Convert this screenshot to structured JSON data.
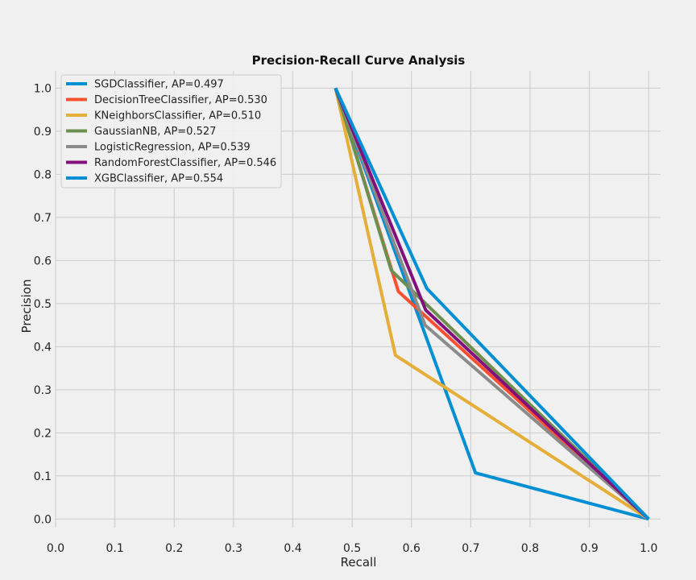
{
  "chart_data": {
    "type": "line",
    "title": "Precision-Recall Curve Analysis",
    "xlabel": "Recall",
    "ylabel": "Precision",
    "xlim": [
      0.0,
      1.02
    ],
    "ylim": [
      -0.02,
      1.04
    ],
    "xticks": [
      0.0,
      0.1,
      0.2,
      0.3,
      0.4,
      0.5,
      0.6,
      0.7,
      0.8,
      0.9,
      1.0
    ],
    "yticks": [
      0.0,
      0.1,
      0.2,
      0.3,
      0.4,
      0.5,
      0.6,
      0.7,
      0.8,
      0.9,
      1.0
    ],
    "grid": true,
    "legend_position": "upper-left",
    "series": [
      {
        "name": "SGDClassifier, AP=0.497",
        "color": "#008fd5",
        "x": [
          0.472,
          0.708,
          1.0
        ],
        "y": [
          1.0,
          0.107,
          0.0
        ]
      },
      {
        "name": "DecisionTreeClassifier, AP=0.530",
        "color": "#fc4f30",
        "x": [
          0.472,
          0.578,
          1.0
        ],
        "y": [
          1.0,
          0.528,
          0.0
        ]
      },
      {
        "name": "KNeighborsClassifier, AP=0.510",
        "color": "#e5ae38",
        "x": [
          0.472,
          0.573,
          1.0
        ],
        "y": [
          1.0,
          0.38,
          0.0
        ]
      },
      {
        "name": "GaussianNB, AP=0.527",
        "color": "#6d904f",
        "x": [
          0.472,
          0.566,
          1.0
        ],
        "y": [
          1.0,
          0.577,
          0.0
        ]
      },
      {
        "name": "LogisticRegression, AP=0.539",
        "color": "#8b8b8b",
        "x": [
          0.472,
          0.623,
          1.0
        ],
        "y": [
          1.0,
          0.45,
          0.0
        ]
      },
      {
        "name": "RandomForestClassifier, AP=0.546",
        "color": "#810f7c",
        "x": [
          0.472,
          0.624,
          1.0
        ],
        "y": [
          1.0,
          0.485,
          0.0
        ]
      },
      {
        "name": "XGBClassifier, AP=0.554",
        "color": "#008fd5",
        "x": [
          0.472,
          0.626,
          1.0
        ],
        "y": [
          1.0,
          0.535,
          0.0
        ]
      }
    ]
  }
}
